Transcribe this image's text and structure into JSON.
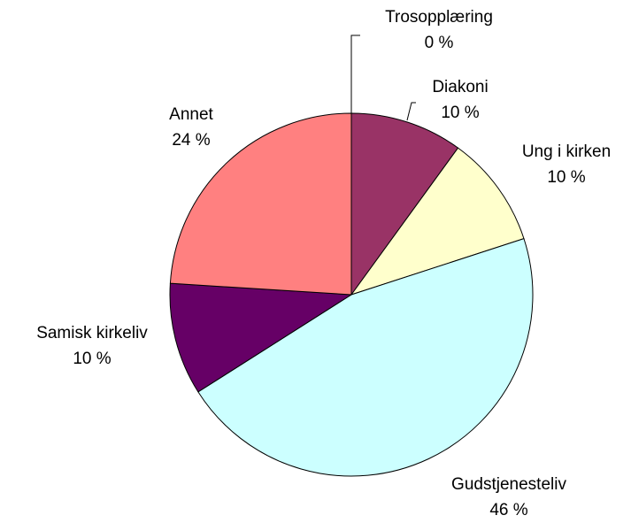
{
  "chart_data": {
    "type": "pie",
    "categories": [
      "Trosopplæring",
      "Diakoni",
      "Ung i kirken",
      "Gudstjenesteliv",
      "Samisk kirkeliv",
      "Annet"
    ],
    "values": [
      0,
      10,
      10,
      46,
      10,
      24
    ],
    "value_labels": [
      "0 %",
      "10 %",
      "10 %",
      "46 %",
      "10 %",
      "24 %"
    ],
    "colors": [
      "#3366cc",
      "#993366",
      "#ffffcc",
      "#ccffff",
      "#660066",
      "#ff8080"
    ]
  }
}
